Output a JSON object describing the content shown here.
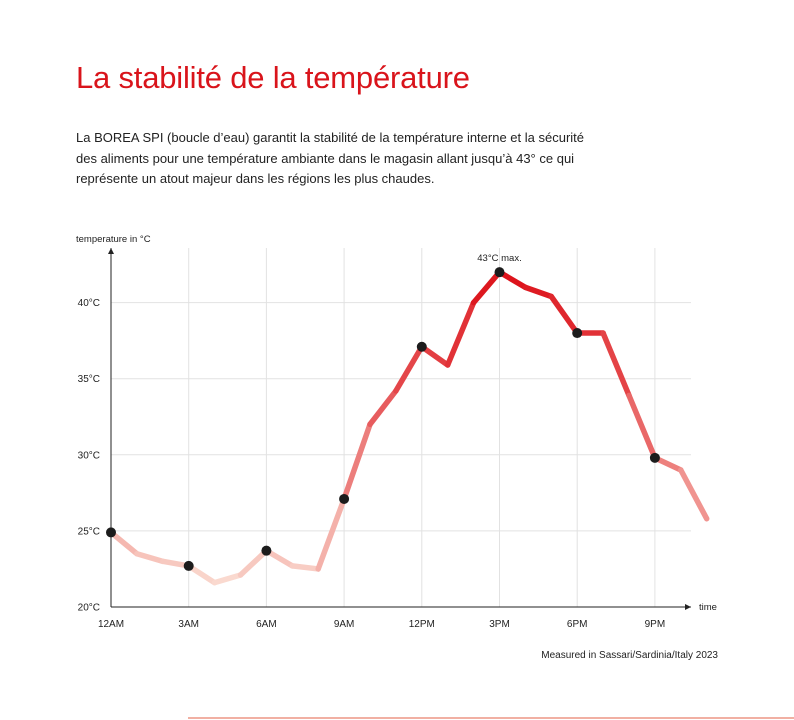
{
  "page": {
    "title": "La stabilité de la température",
    "intro": "La BOREA SPI (boucle d’eau) garantit la stabilité de la température interne et la sécurité des aliments pour une température ambiante dans le magasin allant jusqu’à 43° ce qui représente un atout majeur dans les régions les plus chaudes.",
    "footnote": "Measured in Sassari/Sardinia/Italy 2023"
  },
  "colors": {
    "title": "#d9141b",
    "line_low": "#fbe1d6",
    "line_high": "#dc1018",
    "marker": "#1c1c1c",
    "grid": "#e2e2e2"
  },
  "chart_data": {
    "type": "line",
    "ylabel": "temperature in °C",
    "xlabel": "time",
    "ylim": [
      20,
      44
    ],
    "grid": true,
    "x_ticks": [
      "12AM",
      "3AM",
      "6AM",
      "9AM",
      "12PM",
      "3PM",
      "6PM",
      "9PM"
    ],
    "y_ticks": [
      "20°C",
      "25°C",
      "30°C",
      "35°C",
      "40°C"
    ],
    "y_tick_values": [
      20,
      25,
      30,
      35,
      40
    ],
    "annotation": {
      "text": "43°C max.",
      "x": 15,
      "y": 42
    },
    "series": [
      {
        "x": [
          0,
          1,
          2,
          3,
          4,
          5,
          6,
          7,
          8,
          9,
          10,
          11,
          12,
          13,
          14,
          15,
          16,
          17,
          18,
          19,
          20,
          21,
          22,
          23
        ],
        "y": [
          24.9,
          23.5,
          23.0,
          22.7,
          21.6,
          22.1,
          23.7,
          22.7,
          22.5,
          27.1,
          32.0,
          34.2,
          37.1,
          35.9,
          40.0,
          42.0,
          41.0,
          40.4,
          38.0,
          38.0,
          33.9,
          29.8,
          29.0,
          25.8
        ]
      }
    ],
    "markers_x": [
      0,
      3,
      6,
      9,
      12,
      15,
      18,
      21
    ]
  }
}
